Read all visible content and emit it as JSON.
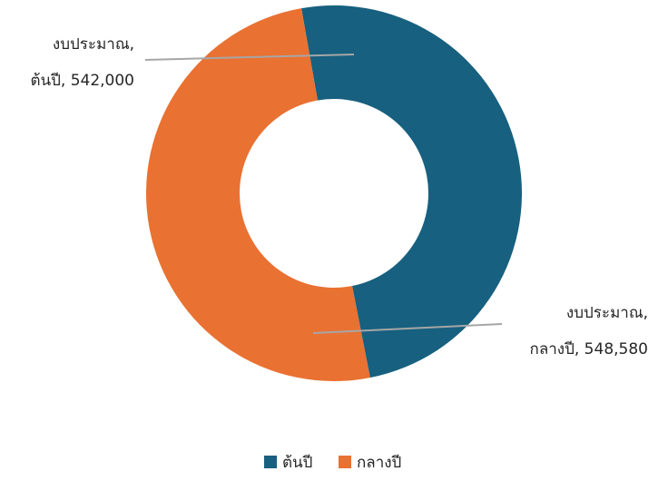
{
  "chart_data": {
    "type": "pie",
    "title": "",
    "categories": [
      "ต้นปี",
      "กลางปี"
    ],
    "series": [
      {
        "values": [
          542000,
          548580
        ]
      }
    ],
    "colors": [
      "#17607f",
      "#e97132"
    ],
    "labels": [
      {
        "line1": "งบประมาณ,",
        "line2": "ต้นปี, 542,000"
      },
      {
        "line1": "งบประมาณ,",
        "line2": "กลางปี, 548,580"
      }
    ],
    "legend": {
      "position": "bottom",
      "entries": [
        "ต้นปี",
        "กลางปี"
      ]
    },
    "hole": "donut"
  }
}
